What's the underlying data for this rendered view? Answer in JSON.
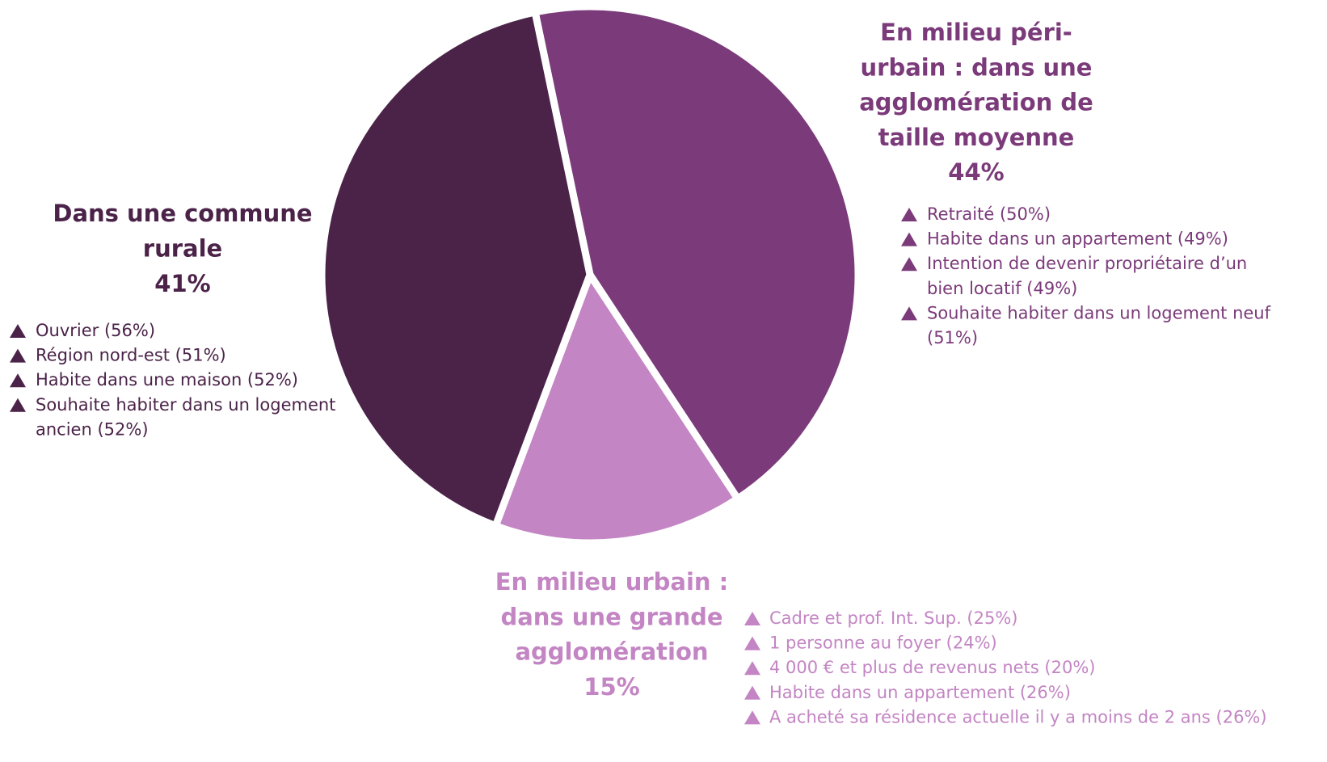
{
  "chart_data": {
    "type": "pie",
    "categories": [
      [
        "En milieu péri-",
        "urbain : dans une",
        "agglomération de",
        "taille moyenne"
      ],
      [
        "En milieu urbain :",
        "dans une grande",
        "agglomération"
      ],
      [
        "Dans une commune",
        "rurale"
      ]
    ],
    "values": [
      44,
      15,
      41
    ],
    "value_labels": [
      "44%",
      "15%",
      "41%"
    ],
    "colors": [
      "#7b3a7a",
      "#c385c3",
      "#4b2349"
    ],
    "annotations": [
      [
        [
          "Retraité (50%)"
        ],
        [
          "Habite dans un appartement (49%)"
        ],
        [
          "Intention de devenir propriétaire d’un",
          "bien locatif (49%)"
        ],
        [
          "Souhaite habiter dans un logement neuf",
          "(51%)"
        ]
      ],
      [
        [
          "Cadre et prof. Int. Sup. (25%)"
        ],
        [
          "1 personne au foyer (24%)"
        ],
        [
          "4 000 € et plus de revenus nets (20%)"
        ],
        [
          "Habite dans un appartement (26%)"
        ],
        [
          "A acheté sa résidence actuelle il y a moins de 2 ans (26%)"
        ]
      ],
      [
        [
          "Ouvrier (56%)"
        ],
        [
          "Région nord-est (51%)"
        ],
        [
          "Habite dans une maison (52%)"
        ],
        [
          "Souhaite habiter dans un logement",
          "ancien (52%)"
        ]
      ]
    ]
  }
}
